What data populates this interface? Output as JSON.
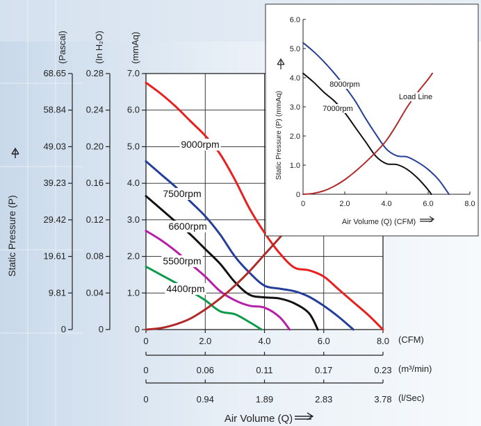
{
  "chart_data": [
    {
      "type": "line",
      "ylabel": "Static Pressure (P)",
      "xlabel": "Air Volume (Q)",
      "pressure_units": [
        "(Pascal)",
        "(In H₂O)",
        "(mmAq)"
      ],
      "y_ticks_mmaq": [
        "0",
        "1.0",
        "2.0",
        "3.0",
        "4.0",
        "5.0",
        "6.0",
        "7.0"
      ],
      "y_ticks_inh2o": [
        "0",
        "0.04",
        "0.08",
        "0.12",
        "0.16",
        "0.20",
        "0.24",
        "0.28"
      ],
      "y_ticks_pascal": [
        "0",
        "9.81",
        "19.61",
        "29.42",
        "39.23",
        "49.03",
        "58.84",
        "68.65"
      ],
      "ylim": [
        0,
        7
      ],
      "xlim": [
        0,
        8
      ],
      "x_axes": [
        {
          "unit": "(CFM)",
          "ticks": [
            "0",
            "2.0",
            "4.0",
            "6.0",
            "8.0"
          ]
        },
        {
          "unit": "(m³/min)",
          "ticks": [
            "0",
            "0.06",
            "0.11",
            "0.17",
            "0.23"
          ]
        },
        {
          "unit": "(l/Sec)",
          "ticks": [
            "0",
            "0.94",
            "1.89",
            "2.83",
            "3.78"
          ]
        }
      ],
      "grid": true,
      "series": [
        {
          "name": "9000rpm",
          "color": "#e8201f",
          "points": [
            [
              0,
              6.75
            ],
            [
              0.5,
              6.45
            ],
            [
              1.0,
              6.1
            ],
            [
              1.5,
              5.7
            ],
            [
              2.0,
              5.3
            ],
            [
              2.5,
              4.8
            ],
            [
              3.0,
              4.1
            ],
            [
              3.5,
              3.3
            ],
            [
              4.0,
              2.65
            ],
            [
              4.5,
              2.1
            ],
            [
              5.0,
              1.7
            ],
            [
              5.5,
              1.62
            ],
            [
              6.0,
              1.45
            ],
            [
              6.5,
              1.1
            ],
            [
              7.0,
              0.75
            ],
            [
              7.5,
              0.4
            ],
            [
              8.0,
              0
            ]
          ]
        },
        {
          "name": "7500rpm",
          "color": "#243e99",
          "points": [
            [
              0,
              4.6
            ],
            [
              0.5,
              4.25
            ],
            [
              1.0,
              3.9
            ],
            [
              1.5,
              3.5
            ],
            [
              2.0,
              3.1
            ],
            [
              2.5,
              2.6
            ],
            [
              3.0,
              2.0
            ],
            [
              3.5,
              1.55
            ],
            [
              4.0,
              1.2
            ],
            [
              4.5,
              1.12
            ],
            [
              5.0,
              1.05
            ],
            [
              5.5,
              0.9
            ],
            [
              6.0,
              0.65
            ],
            [
              6.5,
              0.35
            ],
            [
              7.0,
              0
            ]
          ]
        },
        {
          "name": "6600rpm",
          "color": "#111111",
          "points": [
            [
              0,
              3.65
            ],
            [
              0.5,
              3.3
            ],
            [
              1.0,
              2.95
            ],
            [
              1.5,
              2.6
            ],
            [
              2.0,
              2.2
            ],
            [
              2.5,
              1.8
            ],
            [
              3.0,
              1.3
            ],
            [
              3.5,
              0.95
            ],
            [
              4.0,
              0.88
            ],
            [
              4.5,
              0.85
            ],
            [
              5.0,
              0.72
            ],
            [
              5.5,
              0.45
            ],
            [
              5.8,
              0
            ]
          ]
        },
        {
          "name": "5500rpm",
          "color": "#b51fa8",
          "points": [
            [
              0,
              2.7
            ],
            [
              0.5,
              2.45
            ],
            [
              1.0,
              2.15
            ],
            [
              1.5,
              1.8
            ],
            [
              2.0,
              1.45
            ],
            [
              2.5,
              1.05
            ],
            [
              3.0,
              0.8
            ],
            [
              3.5,
              0.65
            ],
            [
              4.0,
              0.6
            ],
            [
              4.5,
              0.35
            ],
            [
              4.85,
              0
            ]
          ]
        },
        {
          "name": "4400rpm",
          "color": "#0e9a4a",
          "points": [
            [
              0,
              1.72
            ],
            [
              0.5,
              1.5
            ],
            [
              1.0,
              1.28
            ],
            [
              1.5,
              1.05
            ],
            [
              2.0,
              0.8
            ],
            [
              2.5,
              0.5
            ],
            [
              3.0,
              0.42
            ],
            [
              3.5,
              0.2
            ],
            [
              3.9,
              0
            ]
          ]
        },
        {
          "name": "Load Line",
          "color": "#b02a2a",
          "points": [
            [
              0,
              0
            ],
            [
              0.5,
              0.04
            ],
            [
              1.0,
              0.14
            ],
            [
              1.5,
              0.3
            ],
            [
              2.0,
              0.55
            ],
            [
              2.5,
              0.85
            ],
            [
              3.0,
              1.2
            ],
            [
              3.5,
              1.6
            ],
            [
              4.0,
              2.05
            ],
            [
              4.5,
              2.5
            ],
            [
              4.8,
              2.8
            ]
          ]
        }
      ]
    },
    {
      "type": "line",
      "ylabel": "Static Pressure (P) (mmAq)",
      "xlabel": "Air Volume (Q) (CFM)",
      "x_ticks": [
        "0",
        "2.0",
        "4.0",
        "6.0",
        "8.0"
      ],
      "y_ticks": [
        "0",
        "1.0",
        "2.0",
        "3.0",
        "4.0",
        "5.0",
        "6.0"
      ],
      "xlim": [
        0,
        8
      ],
      "ylim": [
        0,
        6
      ],
      "grid": false,
      "series": [
        {
          "name": "8000rpm",
          "color": "#243e99",
          "points": [
            [
              0,
              5.2
            ],
            [
              0.5,
              4.9
            ],
            [
              1.0,
              4.55
            ],
            [
              1.5,
              4.15
            ],
            [
              2.0,
              3.7
            ],
            [
              2.5,
              3.2
            ],
            [
              3.0,
              2.6
            ],
            [
              3.5,
              2.05
            ],
            [
              4.0,
              1.55
            ],
            [
              4.5,
              1.32
            ],
            [
              5.0,
              1.28
            ],
            [
              5.5,
              1.1
            ],
            [
              6.0,
              0.85
            ],
            [
              6.5,
              0.5
            ],
            [
              7.0,
              0
            ]
          ]
        },
        {
          "name": "7000rpm",
          "color": "#111111",
          "points": [
            [
              0,
              4.15
            ],
            [
              0.5,
              3.85
            ],
            [
              1.0,
              3.5
            ],
            [
              1.5,
              3.2
            ],
            [
              2.0,
              2.8
            ],
            [
              2.5,
              2.3
            ],
            [
              3.0,
              1.8
            ],
            [
              3.5,
              1.3
            ],
            [
              4.0,
              1.05
            ],
            [
              4.5,
              1.02
            ],
            [
              5.0,
              0.85
            ],
            [
              5.5,
              0.55
            ],
            [
              6.0,
              0.15
            ],
            [
              6.15,
              0
            ]
          ]
        },
        {
          "name": "Load Line",
          "color": "#b02a2a",
          "points": [
            [
              0,
              0
            ],
            [
              0.5,
              0.03
            ],
            [
              1.0,
              0.12
            ],
            [
              1.5,
              0.28
            ],
            [
              2.0,
              0.5
            ],
            [
              2.5,
              0.78
            ],
            [
              3.0,
              1.1
            ],
            [
              3.5,
              1.45
            ],
            [
              4.0,
              1.85
            ],
            [
              4.5,
              2.4
            ],
            [
              5.0,
              3.0
            ],
            [
              5.5,
              3.5
            ],
            [
              6.0,
              3.95
            ],
            [
              6.2,
              4.15
            ]
          ]
        }
      ]
    }
  ]
}
